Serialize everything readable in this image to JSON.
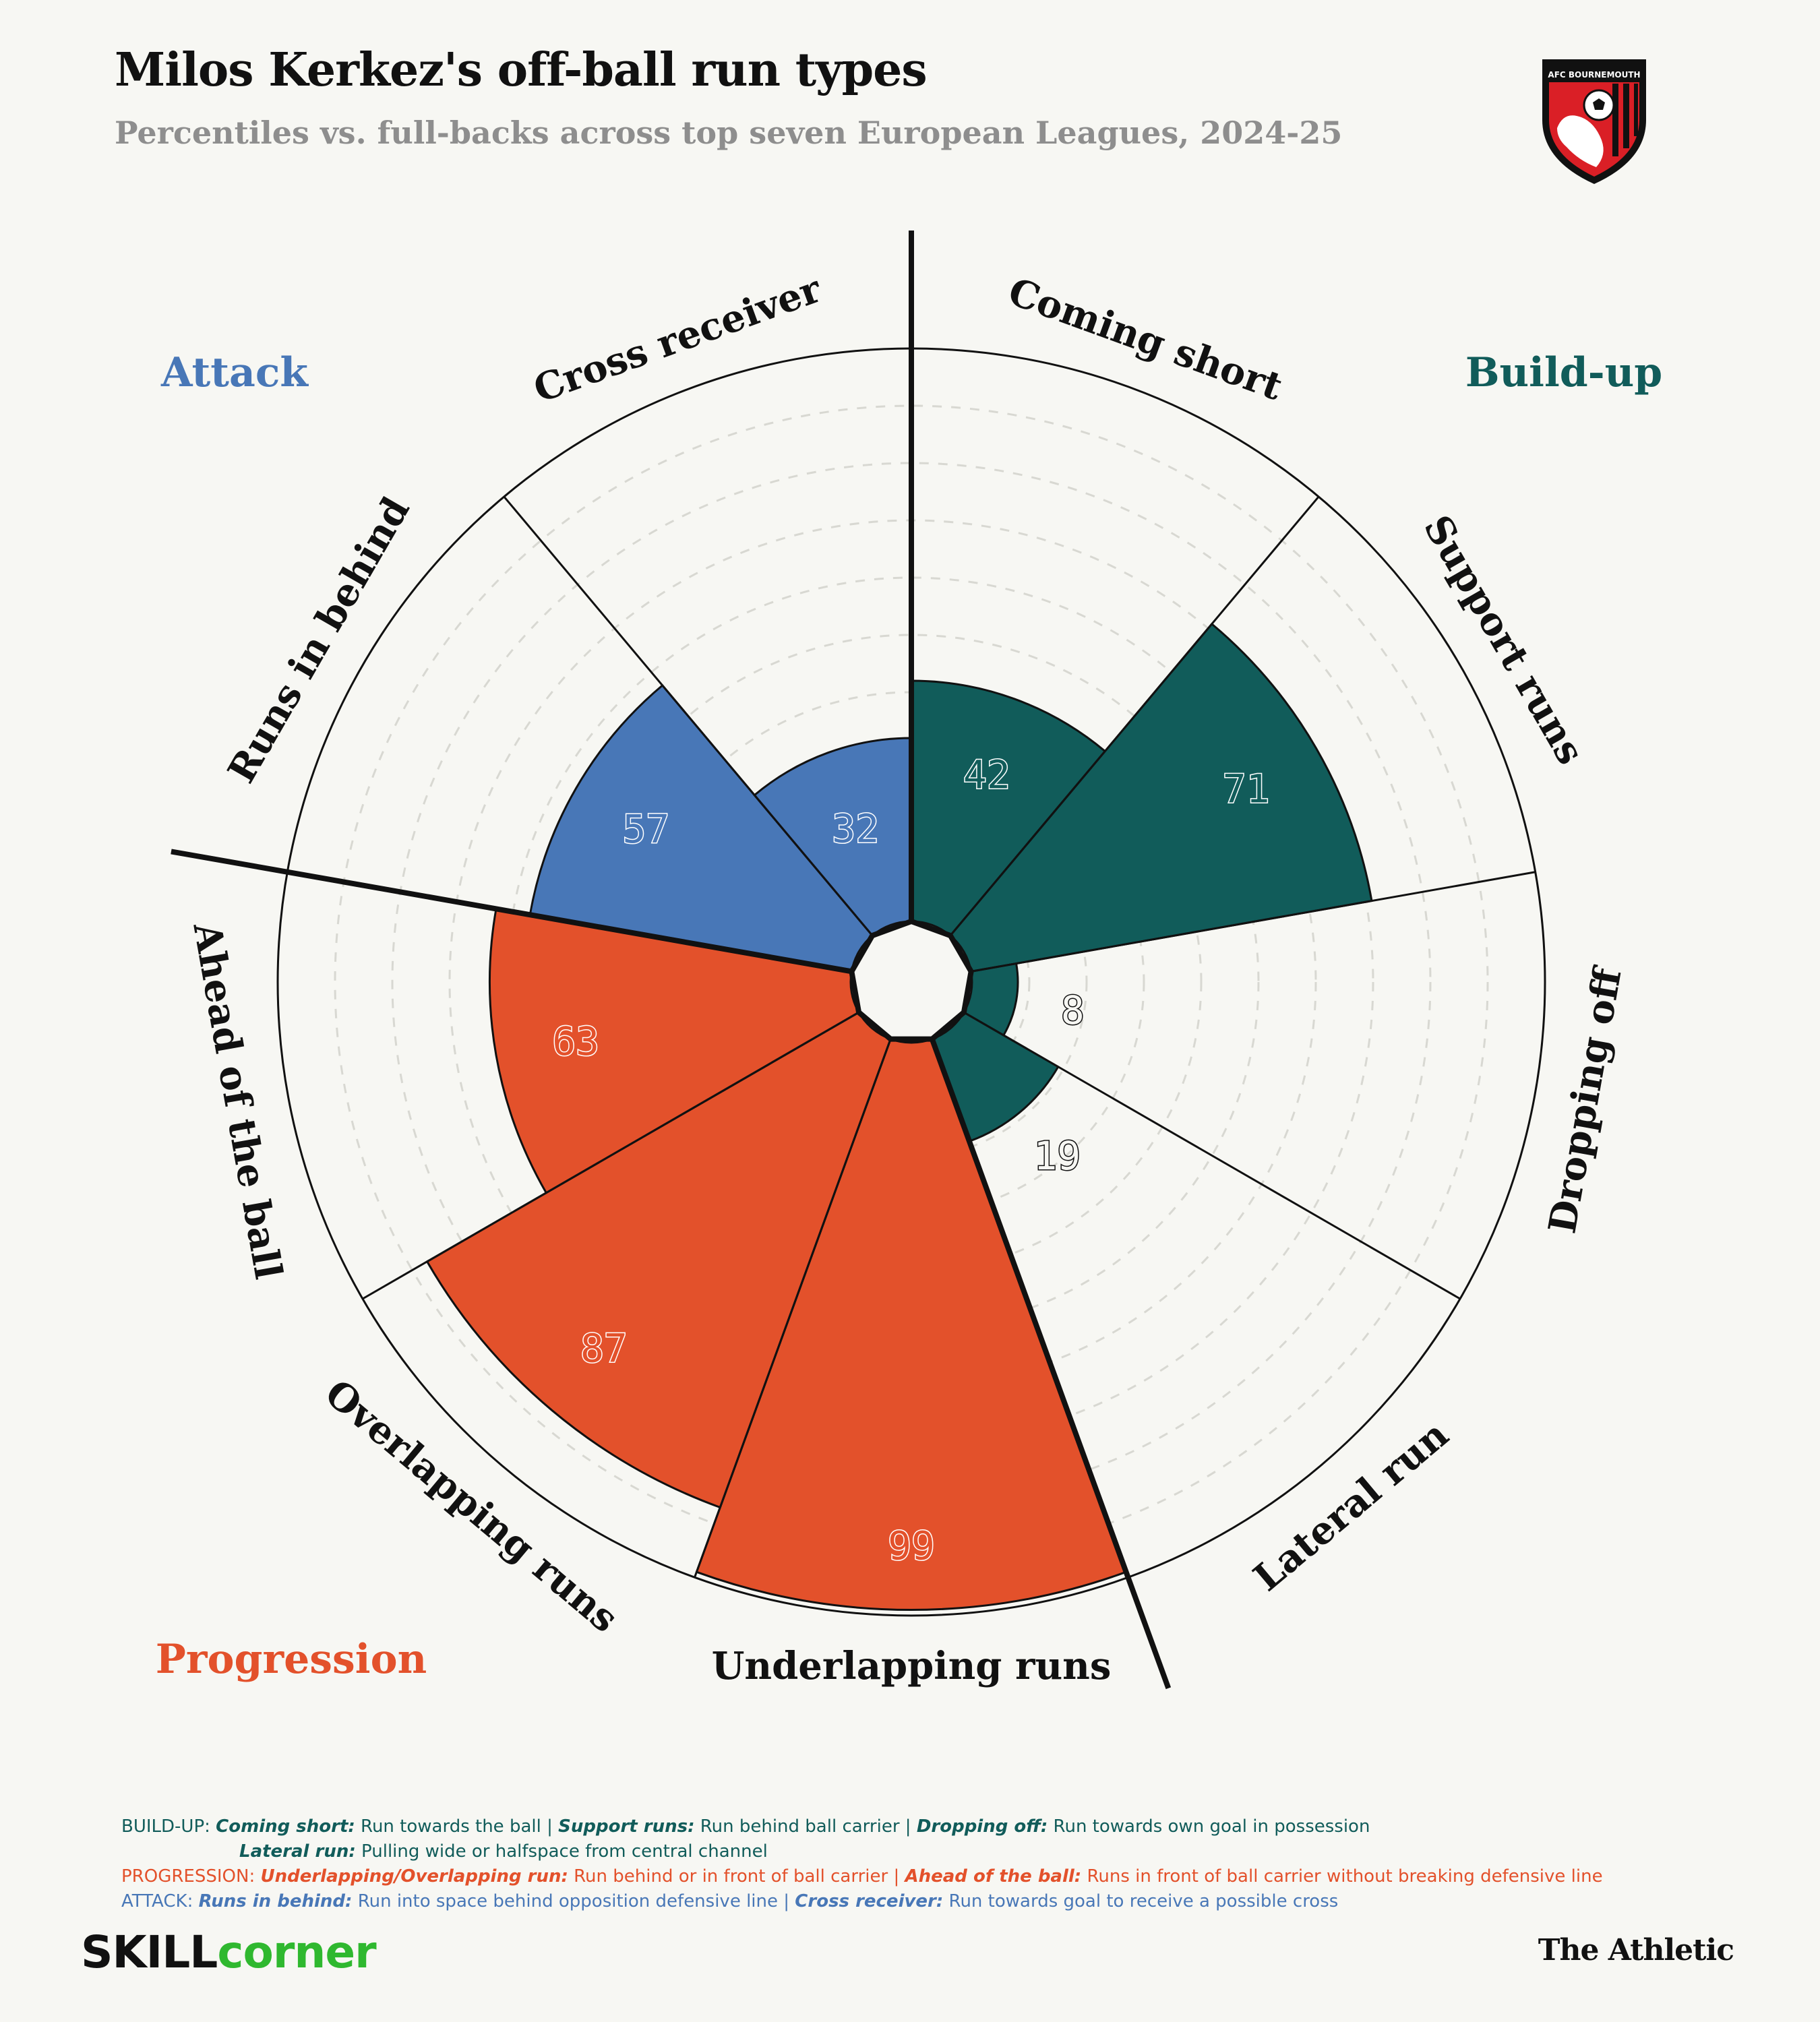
{
  "title": "Milos Kerkez's off-ball run types",
  "subtitle": "Percentiles vs. full-backs across top seven European Leagues, 2024-25",
  "logo": {
    "text": "AFC BOURNEMOUTH",
    "icon": "afc-bournemouth-crest-icon"
  },
  "colors": {
    "background": "#f7f7f3",
    "build_up": "#115c5a",
    "progression": "#e3512b",
    "attack": "#4877b7",
    "grid": "#cfcfc9"
  },
  "chart_data": {
    "type": "polar-bar",
    "scale": [
      0,
      100
    ],
    "grid": true,
    "groups": [
      {
        "name": "Build-up",
        "color": "#115c5a"
      },
      {
        "name": "Progression",
        "color": "#e3512b"
      },
      {
        "name": "Attack",
        "color": "#4877b7"
      }
    ],
    "categories": [
      {
        "name": "Coming short",
        "group": "Build-up",
        "value": 42
      },
      {
        "name": "Support runs",
        "group": "Build-up",
        "value": 71
      },
      {
        "name": "Dropping off",
        "group": "Build-up",
        "value": 8
      },
      {
        "name": "Lateral run",
        "group": "Build-up",
        "value": 19
      },
      {
        "name": "Underlapping runs",
        "group": "Progression",
        "value": 99
      },
      {
        "name": "Overlapping runs",
        "group": "Progression",
        "value": 87
      },
      {
        "name": "Ahead of the ball",
        "group": "Progression",
        "value": 63
      },
      {
        "name": "Runs in behind",
        "group": "Attack",
        "value": 57
      },
      {
        "name": "Cross receiver",
        "group": "Attack",
        "value": 32
      }
    ]
  },
  "legend": {
    "build_up": {
      "head": "BUILD-UP: ",
      "items": [
        {
          "term": "Coming short:",
          "desc": " Run towards the ball | "
        },
        {
          "term": "Support runs:",
          "desc": " Run behind ball carrier | "
        },
        {
          "term": "Dropping off:",
          "desc": " Run towards own goal in possession"
        }
      ],
      "line2": {
        "term": "Lateral run:",
        "desc": " Pulling wide or halfspace from central channel"
      }
    },
    "progression": {
      "head": "PROGRESSION: ",
      "items": [
        {
          "term": "Underlapping/Overlapping run:",
          "desc": " Run behind or in front of ball carrier | "
        },
        {
          "term": "Ahead of the ball:",
          "desc": " Runs in front of ball carrier without breaking defensive line"
        }
      ]
    },
    "attack": {
      "head": "ATTACK: ",
      "items": [
        {
          "term": "Runs in behind:",
          "desc": " Run into space behind opposition defensive line | "
        },
        {
          "term": "Cross receiver:",
          "desc": " Run towards goal to receive a possible cross"
        }
      ]
    }
  },
  "footer": {
    "brand_left_a": "SKILL",
    "brand_left_b": "corner",
    "brand_right": "The Athletic"
  }
}
